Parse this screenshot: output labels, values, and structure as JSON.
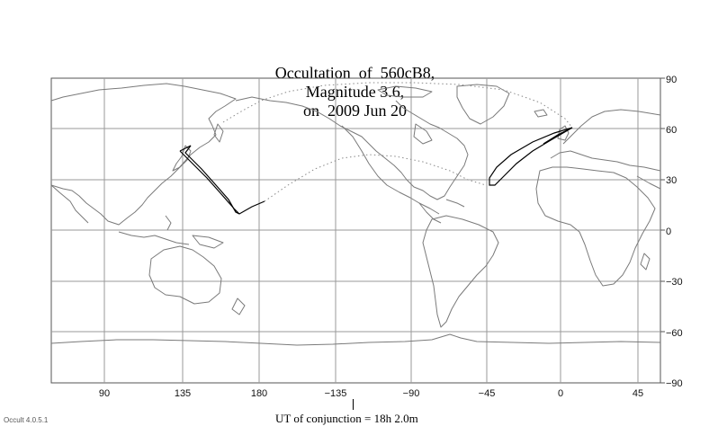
{
  "title": {
    "event": "Occultation  of  560cB8,",
    "magnitude": "Magnitude 3.6,",
    "date": "on  2009 Jun 20"
  },
  "axes": {
    "longitude_ticks": [
      "90",
      "135",
      "180",
      "−135",
      "−90",
      "−45",
      "0",
      "45"
    ],
    "latitude_ticks": [
      "90",
      "60",
      "30",
      "0",
      "−30",
      "−60",
      "−90"
    ]
  },
  "conjunction": {
    "label": "UT of conjunction = 18h  2.0m"
  },
  "footer": {
    "version": "Occult 4.0.5.1"
  },
  "colors": {
    "grid": "#9a9a9a",
    "coast": "#7a7a7a",
    "path": "#000000"
  }
}
